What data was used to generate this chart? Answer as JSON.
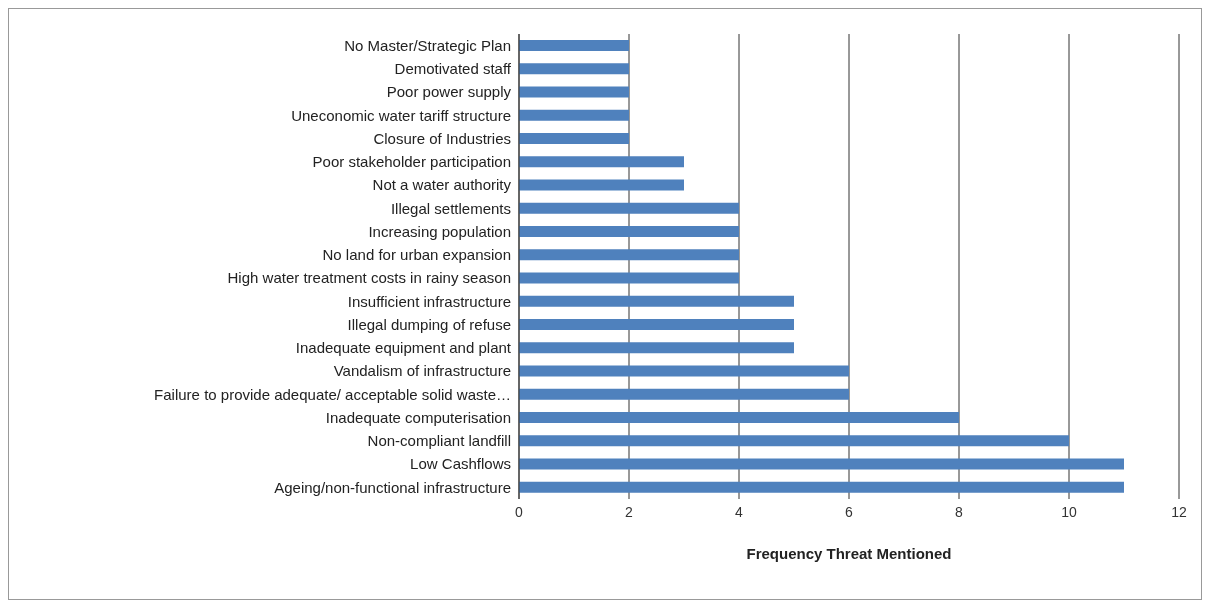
{
  "chart_data": {
    "type": "bar",
    "orientation": "horizontal",
    "categories": [
      "No Master/Strategic Plan",
      "Demotivated staff",
      "Poor power supply",
      "Uneconomic water tariff structure",
      "Closure of Industries",
      "Poor stakeholder participation",
      "Not a water authority",
      "Illegal settlements",
      "Increasing population",
      "No land for urban expansion",
      "High water treatment costs in rainy season",
      "Insufficient infrastructure",
      "Illegal dumping of refuse",
      "Inadequate equipment and plant",
      "Vandalism of infrastructure",
      "Failure to provide adequate/ acceptable solid waste…",
      "Inadequate computerisation",
      "Non-compliant landfill",
      "Low Cashflows",
      "Ageing/non-functional infrastructure"
    ],
    "values": [
      2,
      2,
      2,
      2,
      2,
      3,
      3,
      4,
      4,
      4,
      4,
      5,
      5,
      5,
      6,
      6,
      8,
      10,
      11,
      11
    ],
    "color": "#4f81bd",
    "xlabel": "Frequency Threat Mentioned",
    "xlim": [
      0,
      12
    ],
    "xticks": [
      0,
      2,
      4,
      6,
      8,
      10,
      12
    ],
    "grid": "x"
  }
}
